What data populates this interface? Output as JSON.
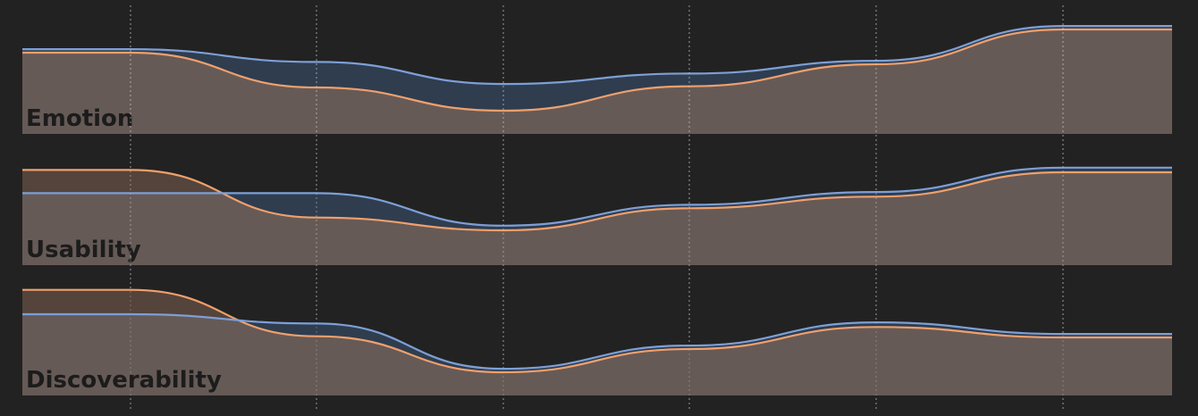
{
  "chart_data": [
    {
      "type": "area",
      "title": "Emotion",
      "categories": [
        null,
        null,
        null,
        null,
        null,
        null
      ],
      "ylim": [
        0,
        100
      ],
      "series": [
        {
          "color": "#7d9fd6",
          "values": [
            73,
            62,
            43,
            52,
            63,
            93
          ]
        },
        {
          "color": "#f0a06c",
          "values": [
            70,
            40,
            20,
            41,
            60,
            90
          ]
        }
      ]
    },
    {
      "type": "area",
      "title": "Usability",
      "categories": [
        null,
        null,
        null,
        null,
        null,
        null
      ],
      "ylim": [
        0,
        100
      ],
      "series": [
        {
          "color": "#7d9fd6",
          "values": [
            62,
            62,
            34,
            52,
            63,
            84
          ]
        },
        {
          "color": "#f0a06c",
          "values": [
            82,
            41,
            30,
            49,
            59,
            80
          ]
        }
      ]
    },
    {
      "type": "area",
      "title": "Discoverability",
      "categories": [
        null,
        null,
        null,
        null,
        null,
        null
      ],
      "ylim": [
        0,
        100
      ],
      "series": [
        {
          "color": "#7d9fd6",
          "values": [
            70,
            62,
            23,
            43,
            63,
            53
          ]
        },
        {
          "color": "#f0a06c",
          "values": [
            91,
            51,
            20,
            40,
            59,
            50
          ]
        }
      ]
    }
  ]
}
